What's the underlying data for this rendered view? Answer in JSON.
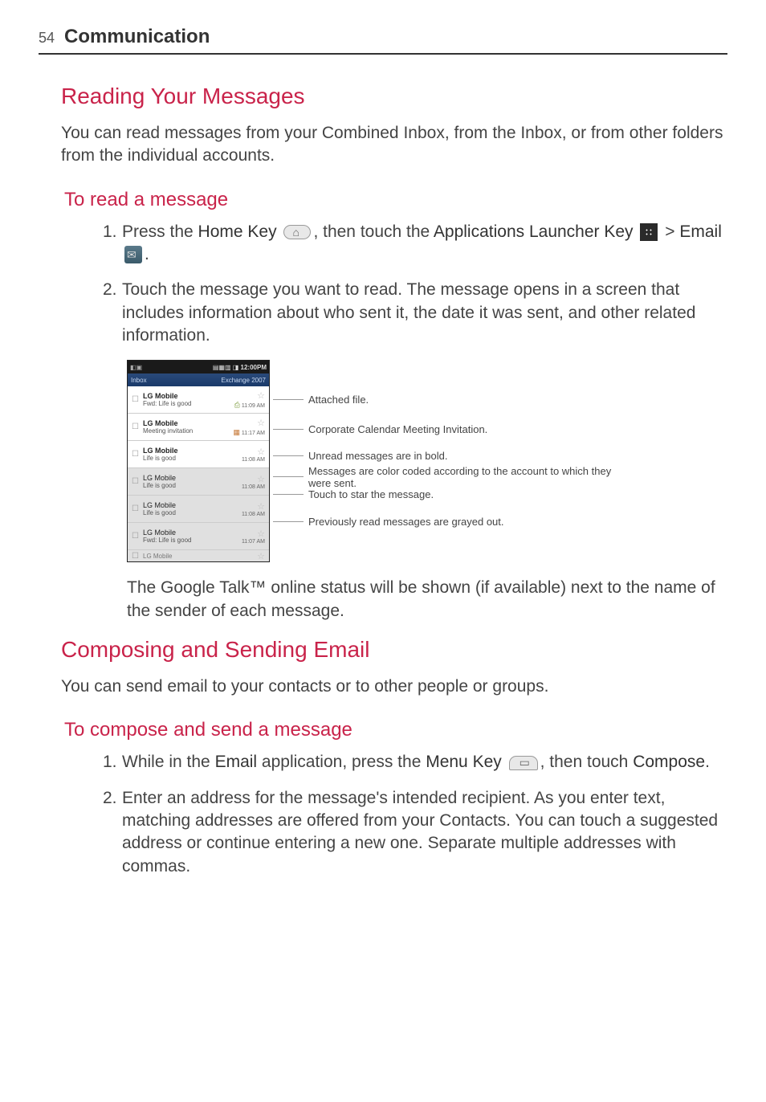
{
  "page": {
    "number": "54",
    "title": "Communication"
  },
  "section1": {
    "heading": "Reading Your Messages",
    "intro": "You can read messages from your Combined Inbox, from the Inbox, or from other folders from the individual accounts.",
    "sub": {
      "heading": "To read a message",
      "step1a": "Press the ",
      "step1_home": "Home Key",
      "step1b": ", then touch the ",
      "step1_apps": "Applications Launcher Key",
      "step1c": " > ",
      "step1_email": "Email",
      "step1d": ".",
      "step2": "Touch the message you want to read. The message opens in a screen that includes information about who sent it, the date it was sent, and other related information.",
      "caption": "The Google Talk™ online status will be shown (if available) next to the name of the sender of each message."
    }
  },
  "screenshot": {
    "statusbar_left": "◧▣",
    "statusbar_right": "▤▦▥ ◨",
    "statusbar_time": "12:00PM",
    "inbox_label": "Inbox",
    "account_label": "Exchange 2007",
    "rows": [
      {
        "from": "LG Mobile",
        "subj": "Fwd: Life is good",
        "time": "11:09 AM",
        "bold": true,
        "read": false,
        "attach": true,
        "cal": false
      },
      {
        "from": "LG Mobile",
        "subj": "Meeting invitation",
        "time": "11:17 AM",
        "bold": true,
        "read": false,
        "attach": false,
        "cal": true
      },
      {
        "from": "LG Mobile",
        "subj": "Life is good",
        "time": "11:08 AM",
        "bold": true,
        "read": false,
        "attach": false,
        "cal": false
      },
      {
        "from": "LG Mobile",
        "subj": "Life is good",
        "time": "11:08 AM",
        "bold": false,
        "read": true,
        "attach": false,
        "cal": false
      },
      {
        "from": "LG Mobile",
        "subj": "Life is good",
        "time": "11:08 AM",
        "bold": false,
        "read": true,
        "attach": false,
        "cal": false
      },
      {
        "from": "LG Mobile",
        "subj": "Fwd: Life is good",
        "time": "11:07 AM",
        "bold": false,
        "read": true,
        "attach": false,
        "cal": false
      }
    ],
    "partial": "LG Mobile"
  },
  "annotations": {
    "a1": "Attached file.",
    "a2": "Corporate Calendar Meeting Invitation.",
    "a3": "Unread messages are in bold.",
    "a4": "Messages are color coded according to the account to which they were sent.",
    "a5": "Touch to star the message.",
    "a6": "Previously read messages are grayed out."
  },
  "section2": {
    "heading": "Composing and Sending Email",
    "intro": "You can send email to your contacts or to other people or groups.",
    "sub": {
      "heading": "To compose and send a message",
      "step1a": "While in the ",
      "step1_email": "Email",
      "step1b": " application, press the ",
      "step1_menu": "Menu Key",
      "step1c": ", then touch ",
      "step1_compose": "Compose",
      "step1d": ".",
      "step2": "Enter an address for the message's intended recipient. As you enter text, matching addresses are offered from your Contacts. You can touch a suggested address or continue entering a new one. Separate multiple addresses with commas."
    }
  },
  "annot_heights": {
    "h1": 39,
    "h2": 34,
    "h3": 33,
    "h4": 19,
    "h5": 25,
    "h6": 42
  }
}
